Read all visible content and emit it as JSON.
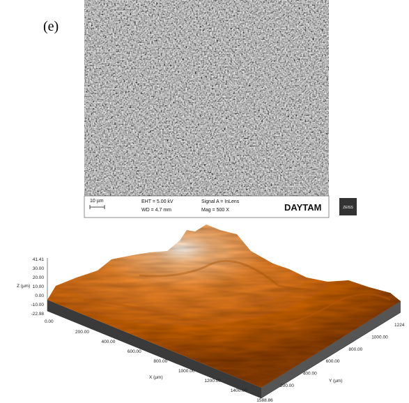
{
  "panel_label": "(e)",
  "sem": {
    "scale_bar": "10 µm",
    "eht": "EHT =  5.00 kV",
    "wd": "WD =  4.7 mm",
    "signal": "Signal A = InLens",
    "mag": "Mag =   500 X",
    "lab": "DAYTAM",
    "logo": "ZEISS"
  },
  "surface": {
    "z_axis": {
      "label": "Z (µm)",
      "ticks": [
        "41.41",
        "30.00",
        "20.00",
        "10.00",
        "0.00",
        "-10.00",
        "-22.98"
      ],
      "origin": "0.00"
    },
    "x_axis": {
      "label": "X (µm)",
      "ticks": [
        "200.00",
        "400.00",
        "600.00",
        "800.00",
        "1000.00",
        "1200.00",
        "1400.00",
        "1588.86"
      ]
    },
    "y_axis": {
      "label": "Y (µm)",
      "ticks": [
        "200.00",
        "400.00",
        "600.00",
        "800.00",
        "1000.00",
        "1224"
      ]
    }
  }
}
